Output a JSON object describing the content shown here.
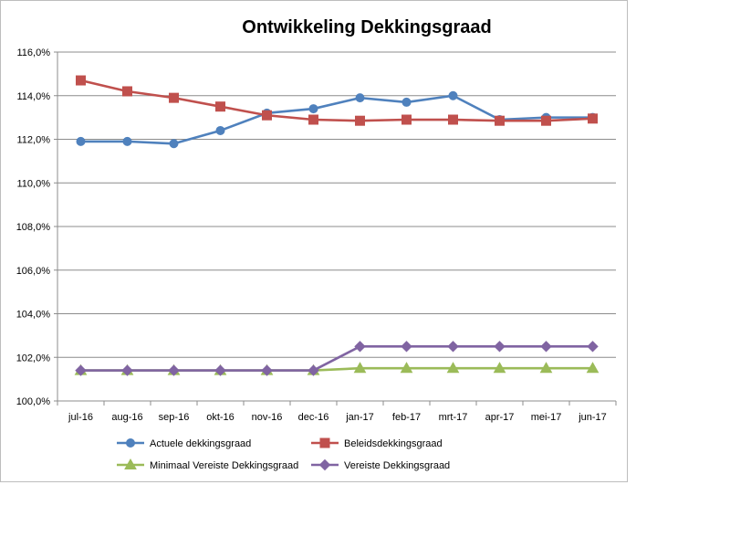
{
  "chart_data": {
    "type": "line",
    "title": "Ontwikkeling Dekkingsgraad",
    "xlabel": "",
    "ylabel": "",
    "categories": [
      "jul-16",
      "aug-16",
      "sep-16",
      "okt-16",
      "nov-16",
      "dec-16",
      "jan-17",
      "feb-17",
      "mrt-17",
      "apr-17",
      "mei-17",
      "jun-17"
    ],
    "ylim": [
      100,
      116
    ],
    "yticks": [
      "100,0%",
      "102,0%",
      "104,0%",
      "106,0%",
      "108,0%",
      "110,0%",
      "112,0%",
      "114,0%",
      "116,0%"
    ],
    "grid": true,
    "legend_position": "bottom",
    "series": [
      {
        "name": "Actuele dekkingsgraad",
        "color": "#4F81BD",
        "marker": "circle",
        "values": [
          111.9,
          111.9,
          111.8,
          112.4,
          113.2,
          113.4,
          113.9,
          113.7,
          114.0,
          112.9,
          113.0,
          113.0
        ]
      },
      {
        "name": "Beleidsdekkingsgraad",
        "color": "#C0504D",
        "marker": "square",
        "values": [
          114.7,
          114.2,
          113.9,
          113.5,
          113.1,
          112.9,
          112.85,
          112.9,
          112.9,
          112.85,
          112.85,
          112.95
        ]
      },
      {
        "name": "Minimaal Vereiste Dekkingsgraad",
        "color": "#9BBB59",
        "marker": "triangle",
        "values": [
          101.4,
          101.4,
          101.4,
          101.4,
          101.4,
          101.4,
          101.5,
          101.5,
          101.5,
          101.5,
          101.5,
          101.5
        ]
      },
      {
        "name": "Vereiste Dekkingsgraad",
        "color": "#8064A2",
        "marker": "diamond",
        "values": [
          101.4,
          101.4,
          101.4,
          101.4,
          101.4,
          101.4,
          102.5,
          102.5,
          102.5,
          102.5,
          102.5,
          102.5
        ]
      }
    ]
  }
}
